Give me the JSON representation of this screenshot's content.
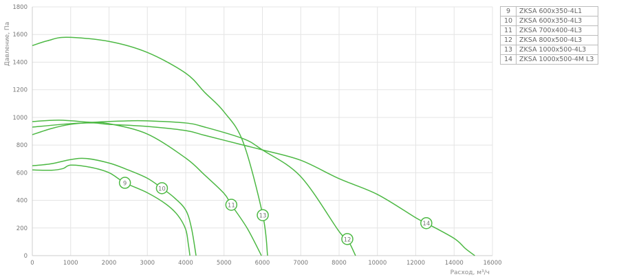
{
  "chart_data": {
    "type": "line",
    "title": "",
    "xlabel": "Расход, м³/ч",
    "ylabel": "Давление, Па",
    "xticks": [
      0,
      1000,
      2000,
      3000,
      4000,
      5000,
      6000,
      7000,
      8000,
      10000,
      12000,
      14000,
      16000
    ],
    "yticks": [
      0,
      200,
      400,
      600,
      800,
      1000,
      1200,
      1400,
      1600,
      1800
    ],
    "xlim": [
      0,
      16000
    ],
    "ylim": [
      0,
      1800
    ],
    "grid": true,
    "color": "#4cb843",
    "legend_position": "right",
    "series": [
      {
        "name": "9",
        "label_point": [
          2415,
          527
        ],
        "points": [
          [
            0,
            620
          ],
          [
            500,
            618
          ],
          [
            800,
            630
          ],
          [
            1000,
            655
          ],
          [
            1500,
            640
          ],
          [
            2000,
            600
          ],
          [
            2415,
            527
          ],
          [
            3000,
            455
          ],
          [
            3500,
            370
          ],
          [
            3800,
            290
          ],
          [
            4000,
            190
          ],
          [
            4070,
            80
          ],
          [
            4110,
            0
          ]
        ]
      },
      {
        "name": "10",
        "label_point": [
          3380,
          488
        ],
        "points": [
          [
            0,
            650
          ],
          [
            500,
            665
          ],
          [
            1000,
            695
          ],
          [
            1400,
            703
          ],
          [
            2000,
            670
          ],
          [
            2500,
            620
          ],
          [
            3000,
            560
          ],
          [
            3380,
            488
          ],
          [
            3700,
            420
          ],
          [
            4000,
            330
          ],
          [
            4150,
            200
          ],
          [
            4270,
            0
          ]
        ]
      },
      {
        "name": "11",
        "label_point": [
          5190,
          368
        ],
        "points": [
          [
            0,
            970
          ],
          [
            700,
            980
          ],
          [
            1500,
            965
          ],
          [
            2000,
            955
          ],
          [
            3000,
            880
          ],
          [
            4000,
            706
          ],
          [
            4500,
            582
          ],
          [
            5000,
            450
          ],
          [
            5190,
            368
          ],
          [
            5600,
            200
          ],
          [
            5975,
            0
          ]
        ]
      },
      {
        "name": "12",
        "label_point": [
          8430,
          120
        ],
        "points": [
          [
            0,
            875
          ],
          [
            500,
            920
          ],
          [
            1000,
            950
          ],
          [
            1600,
            965
          ],
          [
            2500,
            975
          ],
          [
            3000,
            975
          ],
          [
            4000,
            960
          ],
          [
            4500,
            930
          ],
          [
            5500,
            846
          ],
          [
            6000,
            765
          ],
          [
            7000,
            572
          ],
          [
            8000,
            175
          ],
          [
            8430,
            120
          ],
          [
            8860,
            0
          ]
        ]
      },
      {
        "name": "13",
        "label_point": [
          6010,
          293
        ],
        "points": [
          [
            0,
            1520
          ],
          [
            400,
            1555
          ],
          [
            900,
            1580
          ],
          [
            2000,
            1550
          ],
          [
            3000,
            1470
          ],
          [
            4000,
            1320
          ],
          [
            4500,
            1180
          ],
          [
            5000,
            1040
          ],
          [
            5500,
            820
          ],
          [
            6010,
            293
          ],
          [
            6135,
            0
          ]
        ]
      },
      {
        "name": "14",
        "label_point": [
          12550,
          235
        ],
        "points": [
          [
            0,
            930
          ],
          [
            1000,
            955
          ],
          [
            1600,
            960
          ],
          [
            2000,
            950
          ],
          [
            3000,
            935
          ],
          [
            4000,
            905
          ],
          [
            4500,
            870
          ],
          [
            5500,
            800
          ],
          [
            6000,
            765
          ],
          [
            7000,
            690
          ],
          [
            8000,
            557
          ],
          [
            10000,
            443
          ],
          [
            12000,
            274
          ],
          [
            12550,
            235
          ],
          [
            14000,
            125
          ],
          [
            14600,
            50
          ],
          [
            15080,
            0
          ]
        ]
      }
    ]
  },
  "legend": [
    {
      "num": "9",
      "name": "ZKSA 600x350-4L1"
    },
    {
      "num": "10",
      "name": "ZKSA 600x350-4L3"
    },
    {
      "num": "11",
      "name": "ZKSA 700x400-4L3"
    },
    {
      "num": "12",
      "name": "ZKSA 800x500-4L3"
    },
    {
      "num": "13",
      "name": "ZKSA 1000x500-4L3"
    },
    {
      "num": "14",
      "name": "ZKSA 1000x500-4M L3"
    }
  ]
}
